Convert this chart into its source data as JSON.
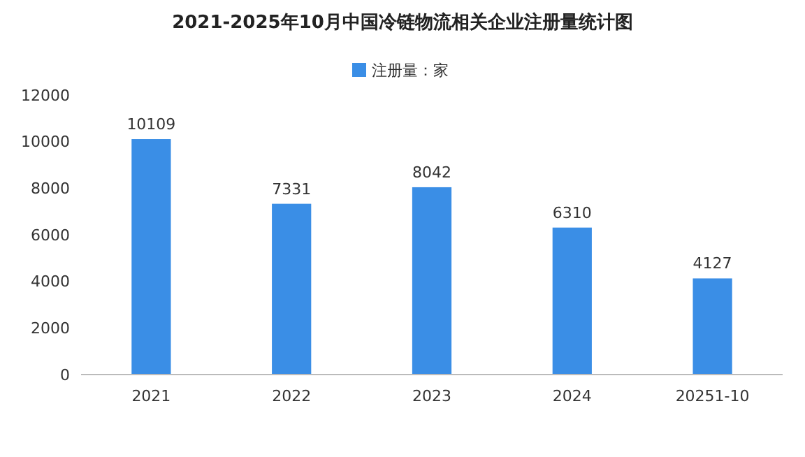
{
  "chart_data": {
    "type": "bar",
    "title": "2021-2025年10月中国冷链物流相关企业注册量统计图",
    "categories": [
      "2021",
      "2022",
      "2023",
      "2024",
      "20251-10"
    ],
    "series": [
      {
        "name": "注册量：家",
        "color": "#3a8ee6",
        "values": [
          10109,
          7331,
          8042,
          6310,
          4127
        ]
      }
    ],
    "ylim": [
      0,
      12000
    ],
    "yticks": [
      0,
      2000,
      4000,
      6000,
      8000,
      10000,
      12000
    ],
    "grid": false,
    "legend": "top",
    "data_labels": true
  }
}
